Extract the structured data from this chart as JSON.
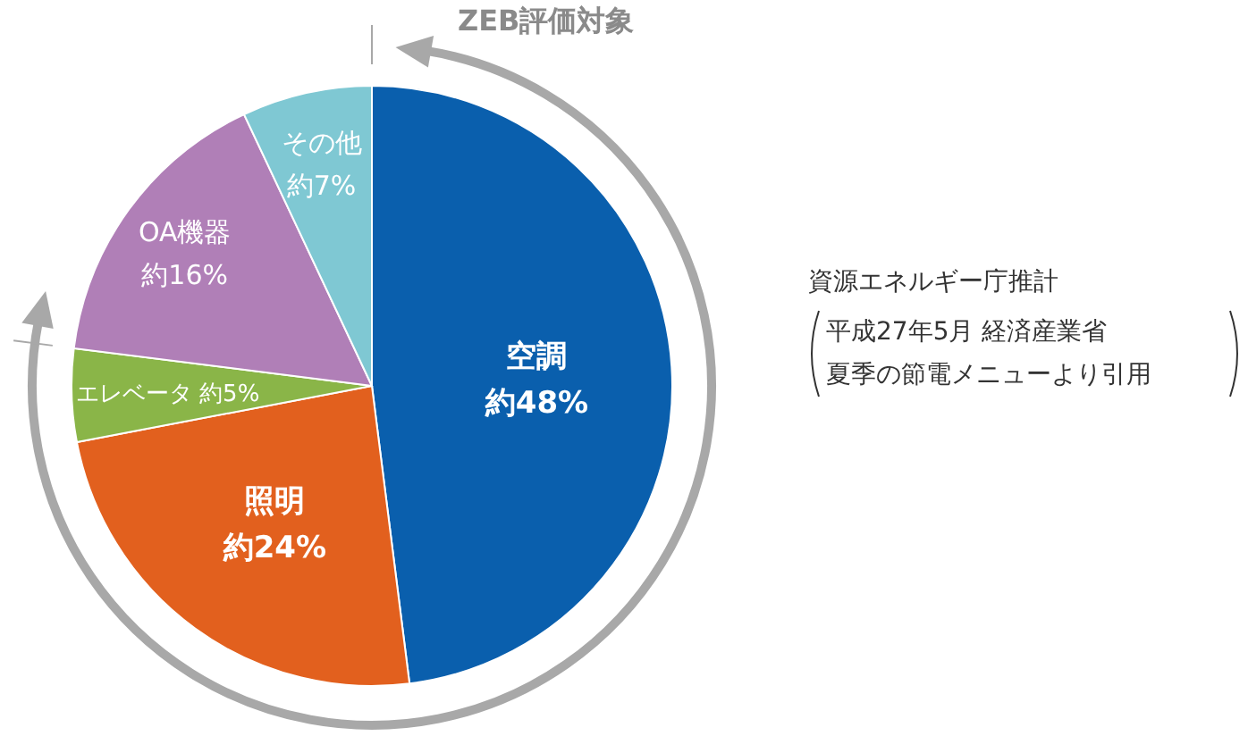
{
  "chart_data": {
    "type": "pie",
    "categories": [
      "空調",
      "照明",
      "エレベータ",
      "OA機器",
      "その他"
    ],
    "values": [
      48,
      24,
      5,
      16,
      7
    ],
    "value_labels": [
      "約48%",
      "約24%",
      "約5%",
      "約16%",
      "約7%"
    ],
    "colors": [
      "#0a5fad",
      "#e2601e",
      "#8ab548",
      "#b07fb7",
      "#7fc8d3"
    ],
    "annotations": [
      "ZEB評価対象",
      "資源エネルギー庁推計",
      "平成27年5月  経済産業省",
      "夏季の節電メニューより引用"
    ]
  }
}
